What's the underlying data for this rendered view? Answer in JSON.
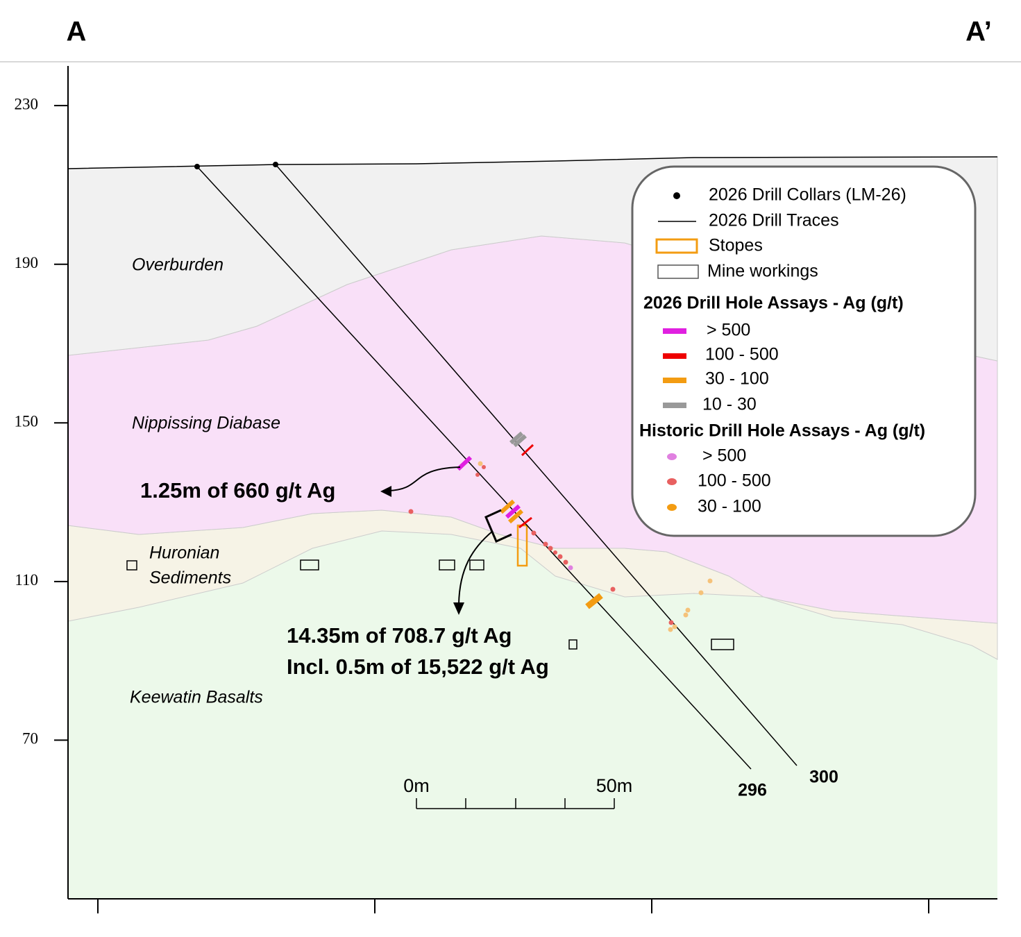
{
  "header": {
    "left": "A",
    "right": "A’"
  },
  "axis": {
    "ylim": [
      30,
      240
    ],
    "yticks": [
      230,
      190,
      150,
      110,
      70
    ]
  },
  "layers": [
    [
      "Overburden"
    ],
    [
      "Nippissing Diabase"
    ],
    [
      "Huronian",
      "Sediments"
    ],
    [
      "Keewatin Basalts"
    ]
  ],
  "annotations": [
    {
      "lines": [
        "1.25m of 660 g/t Ag"
      ]
    },
    {
      "lines": [
        "14.35m of 708.7 g/t Ag",
        "Incl. 0.5m of 15,522 g/t Ag"
      ]
    }
  ],
  "drill_holes": [
    "296",
    "300"
  ],
  "scale_bar": [
    "0m",
    "50m"
  ],
  "legend": {
    "items": [
      "2026 Drill Collars (LM-26)",
      "2026 Drill Traces",
      "Stopes",
      "Mine workings"
    ],
    "groups": [
      {
        "title": "2026 Drill Hole Assays - Ag (g/t)",
        "items": [
          "> 500",
          "100 - 500",
          "30 - 100",
          "10 - 30"
        ]
      },
      {
        "title": "Historic Drill Hole Assays - Ag (g/t)",
        "items": [
          "> 500",
          "100 - 500",
          "30 - 100"
        ]
      }
    ]
  }
}
